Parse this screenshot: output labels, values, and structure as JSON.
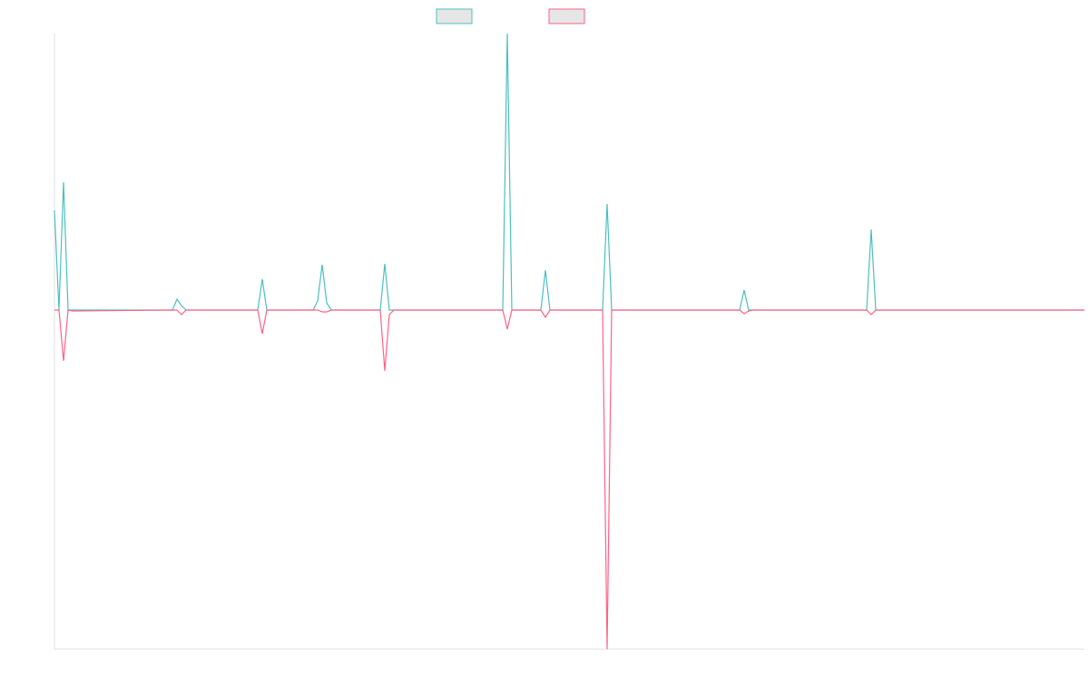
{
  "chart_data": {
    "type": "line",
    "x": [
      0,
      5,
      10,
      15,
      20,
      130,
      135,
      140,
      145,
      224,
      229,
      234,
      285,
      290,
      295,
      300,
      305,
      359,
      364,
      369,
      374,
      494,
      499,
      504,
      536,
      541,
      546,
      604,
      609,
      614,
      755,
      760,
      765,
      770,
      895,
      900,
      905,
      1135
    ],
    "series": [
      {
        "color": "#4bc0c0",
        "values": [
          110,
          0,
          141,
          0,
          0,
          0,
          12,
          5,
          0,
          0,
          34,
          0,
          0,
          10,
          50,
          8,
          0,
          0,
          51,
          0,
          0,
          0,
          305,
          0,
          0,
          44,
          0,
          0,
          117,
          0,
          0,
          22,
          0,
          0,
          0,
          89,
          0,
          0
        ]
      },
      {
        "color": "#ff6384",
        "values": [
          0,
          0,
          -56,
          0,
          -1,
          0,
          0,
          -5,
          0,
          0,
          -26,
          0,
          0,
          0,
          -2,
          -2,
          0,
          0,
          -67,
          -5,
          0,
          0,
          -21,
          0,
          0,
          -8,
          0,
          0,
          -374,
          0,
          0,
          -4,
          -1,
          0,
          0,
          -5,
          0,
          0
        ]
      }
    ],
    "xlim": [
      0,
      1135
    ],
    "ylim": [
      -374,
      305
    ]
  }
}
